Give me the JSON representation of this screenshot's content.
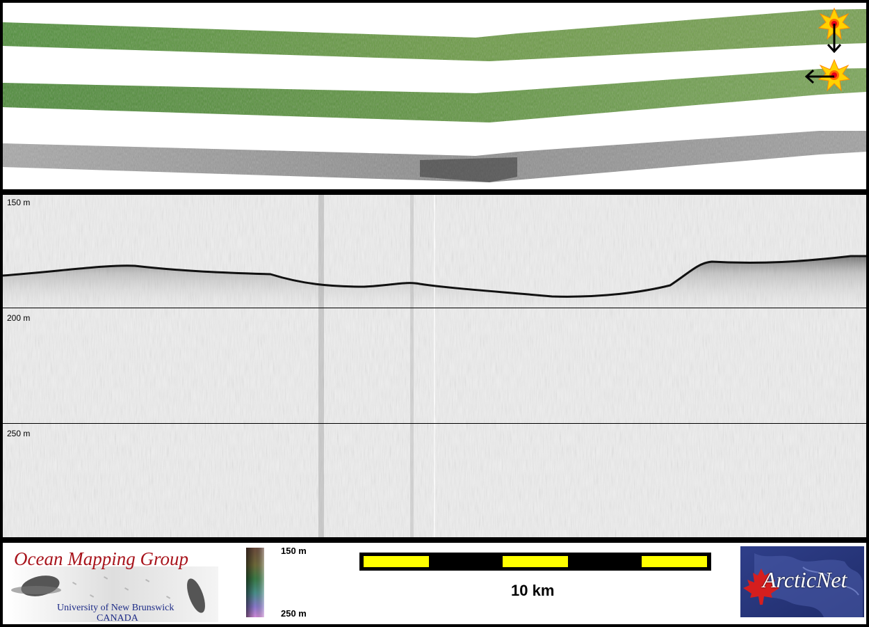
{
  "profile": {
    "depth_labels": [
      "150 m",
      "200 m",
      "250 m"
    ]
  },
  "legend": {
    "depth_min_label": "150 m",
    "depth_max_label": "250 m",
    "scale_label": "10 km"
  },
  "logos": {
    "omg": {
      "title": "Ocean Mapping Group",
      "university": "University of New Brunswick",
      "country": "CANADA"
    },
    "arcticnet": {
      "text": "ArcticNet"
    }
  },
  "colors": {
    "swath_green": "#5f9440",
    "backscatter_gray": "#9a9a9a",
    "scalebar_yellow": "#ffff00",
    "omg_red": "#a8141c",
    "omg_blue": "#1c2a86",
    "arcticnet_blue": "#27367a",
    "maple_red": "#d51e1e"
  },
  "icons": [
    "sun-marker-icon",
    "arrow-down-icon",
    "arrow-left-icon",
    "maple-leaf-icon"
  ]
}
